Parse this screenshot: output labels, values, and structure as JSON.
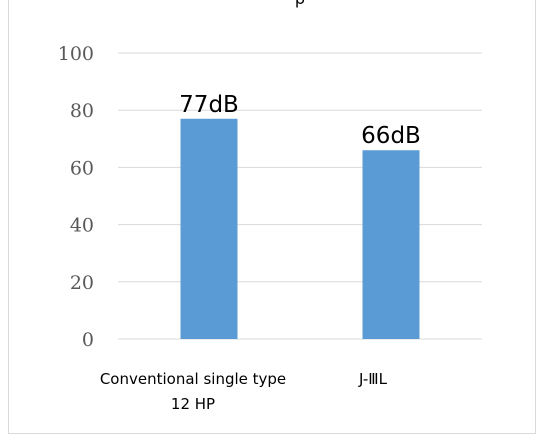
{
  "chart_data": {
    "type": "bar",
    "title": "p",
    "categories": [
      [
        "Conventional single type",
        "12 HP"
      ],
      [
        "J-ⅢL"
      ]
    ],
    "values": [
      77,
      66
    ],
    "data_labels": [
      "77dB",
      "66dB"
    ],
    "ylim": [
      0,
      100
    ],
    "yticks": [
      "0",
      "20",
      "40",
      "60",
      "80",
      "100"
    ],
    "ytick_values": [
      0,
      20,
      40,
      60,
      80,
      100
    ],
    "grid": true,
    "legend": "none",
    "colors": {
      "bar": "#5b9bd5",
      "grid": "#d9d9d9",
      "tick_text": "#595959",
      "frame": "#d9d9d9"
    }
  }
}
